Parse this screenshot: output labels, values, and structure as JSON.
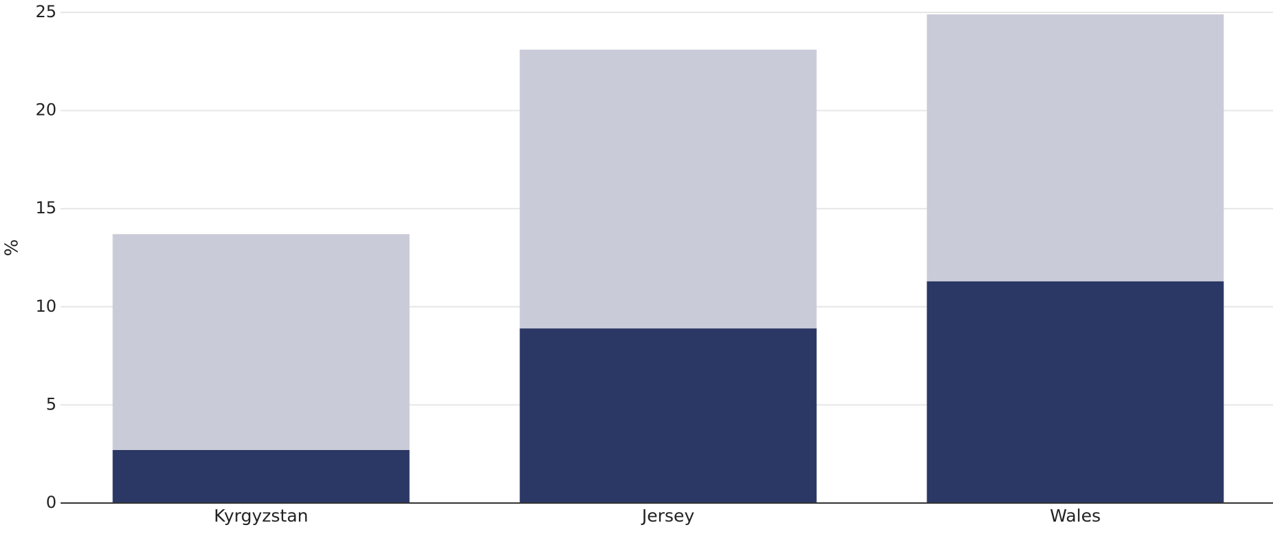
{
  "chart_data": {
    "type": "bar",
    "stacked": true,
    "title": "",
    "xlabel": "",
    "ylabel": "%",
    "ylim": [
      0,
      25
    ],
    "yticks": [
      0,
      5,
      10,
      15,
      20,
      25
    ],
    "grid": true,
    "categories": [
      "Kyrgyzstan",
      "Jersey",
      "Wales"
    ],
    "series": [
      {
        "values": [
          2.7,
          8.9,
          11.3
        ],
        "color": "#2b3764"
      },
      {
        "values": [
          11.0,
          14.2,
          13.6
        ],
        "color": "#c9cbd8"
      }
    ],
    "colors": {
      "grid": "#e6e6e6",
      "axis": "#333333",
      "text": "#222222"
    }
  }
}
